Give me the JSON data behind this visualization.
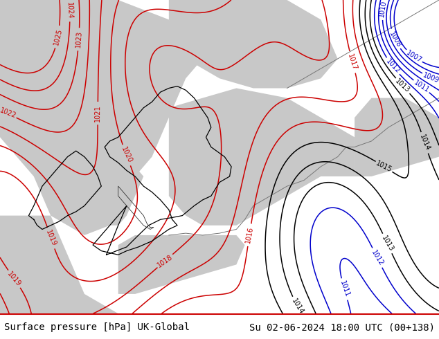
{
  "title_left": "Surface pressure [hPa] UK-Global",
  "title_right": "Su 02-06-2024 18:00 UTC (00+138)",
  "bg_color_land": "#c8ec8c",
  "bg_color_sea": "#c8c8c8",
  "contour_color_red": "#cc0000",
  "contour_color_blue": "#0000cc",
  "contour_color_black": "#000000",
  "fig_width": 6.34,
  "fig_height": 4.9,
  "dpi": 100,
  "title_fontsize": 10,
  "label_fontsize": 7
}
